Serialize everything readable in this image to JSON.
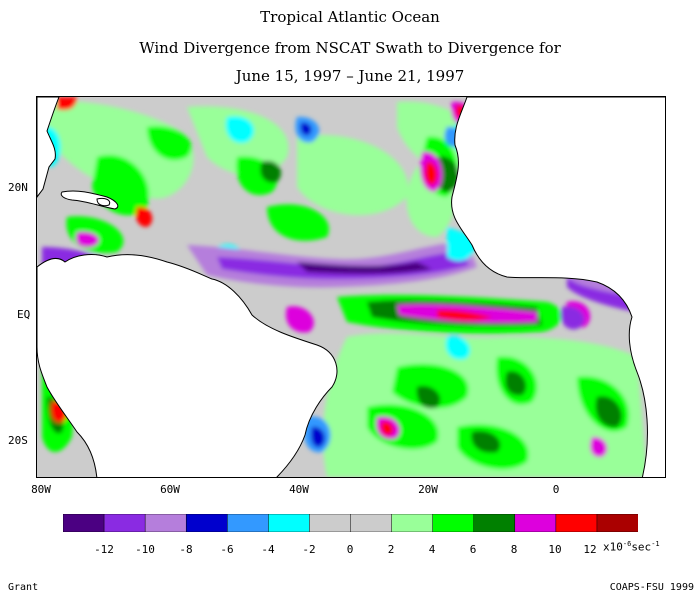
{
  "title": {
    "line1": "Tropical Atlantic Ocean",
    "line2": "Wind Divergence from NSCAT Swath to Divergence for",
    "line3": "June 15, 1997 – June 21, 1997"
  },
  "axes": {
    "lat_labels": [
      "20N",
      "EQ",
      "20S"
    ],
    "lon_labels": [
      "80W",
      "60W",
      "40W",
      "20W",
      "0"
    ]
  },
  "colorbar": {
    "colors": [
      "#4b0082",
      "#8a2be2",
      "#b57edc",
      "#0000cd",
      "#3399ff",
      "#00ffff",
      "#cccccc",
      "#cccccc",
      "#99ff99",
      "#00ff00",
      "#008000",
      "#dd00dd",
      "#ff0000",
      "#aa0000"
    ],
    "labels": [
      "-12",
      "-10",
      "-8",
      "-6",
      "-4",
      "-2",
      "0",
      "2",
      "4",
      "6",
      "8",
      "10",
      "12"
    ],
    "unit_prefix": "x10",
    "unit_exp": "-6",
    "unit_suffix": "sec",
    "unit_exp2": "-1"
  },
  "credits": {
    "left": "Grant",
    "right": "COAPS-FSU 1999"
  },
  "map_colors": {
    "land": "#ffffff",
    "ocean_bg": "#cccccc"
  }
}
